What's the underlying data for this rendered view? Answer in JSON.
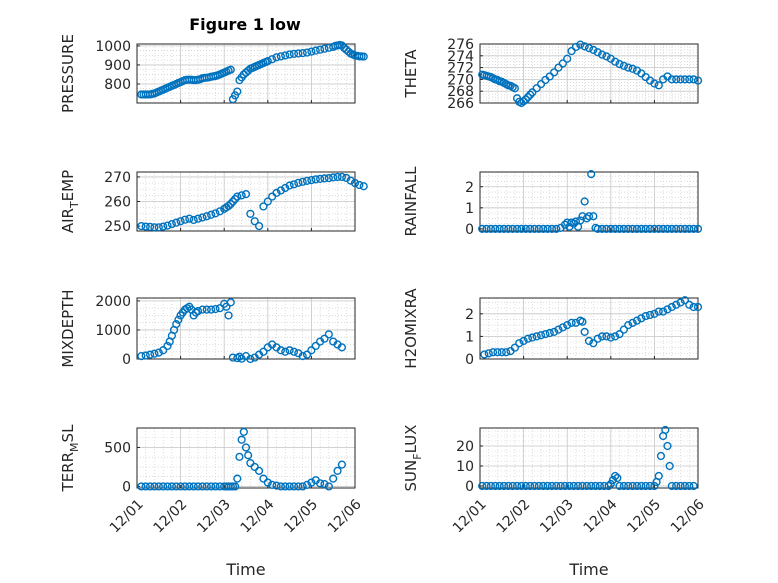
{
  "figure_title": "Figure 1 low",
  "x_tick_labels": [
    "12/01",
    "12/02",
    "12/03",
    "12/04",
    "12/05",
    "12/06"
  ],
  "marker_color": "#0072BD",
  "grid_color": "#c8c8c8",
  "axis_color": "#262626",
  "chart_data": [
    {
      "type": "scatter",
      "name": "pressure",
      "ylabel": "PRESSURE",
      "xlabel": "",
      "title": "Figure 1 low",
      "xlim": [
        0,
        5
      ],
      "ylim": [
        700,
        1010
      ],
      "yticks": [
        800,
        900,
        1000
      ],
      "x": [
        0.1,
        0.15,
        0.2,
        0.25,
        0.3,
        0.35,
        0.4,
        0.45,
        0.5,
        0.55,
        0.6,
        0.65,
        0.7,
        0.75,
        0.8,
        0.85,
        0.9,
        0.95,
        1.0,
        1.05,
        1.1,
        1.15,
        1.2,
        1.25,
        1.3,
        1.35,
        1.4,
        1.45,
        1.5,
        1.55,
        1.6,
        1.65,
        1.7,
        1.75,
        1.8,
        1.85,
        1.9,
        1.95,
        2.0,
        2.05,
        2.1,
        2.15,
        2.2,
        2.25,
        2.3,
        2.35,
        2.4,
        2.45,
        2.5,
        2.55,
        2.6,
        2.65,
        2.7,
        2.75,
        2.8,
        2.85,
        2.9,
        2.95,
        3.0,
        3.1,
        3.2,
        3.3,
        3.4,
        3.5,
        3.6,
        3.7,
        3.8,
        3.9,
        4.0,
        4.1,
        4.2,
        4.3,
        4.4,
        4.5,
        4.55,
        4.6,
        4.65,
        4.7,
        4.75,
        4.8,
        4.85,
        4.9,
        4.95,
        5.0,
        5.05,
        5.1,
        5.15,
        5.2
      ],
      "y": [
        745,
        745,
        745,
        745,
        745,
        748,
        750,
        755,
        760,
        765,
        770,
        775,
        780,
        785,
        790,
        795,
        800,
        805,
        810,
        815,
        820,
        822,
        822,
        822,
        820,
        820,
        822,
        825,
        830,
        832,
        833,
        835,
        838,
        840,
        842,
        845,
        850,
        855,
        860,
        865,
        870,
        875,
        720,
        740,
        760,
        820,
        835,
        850,
        860,
        870,
        880,
        885,
        890,
        895,
        900,
        905,
        910,
        915,
        920,
        930,
        940,
        945,
        950,
        955,
        958,
        960,
        962,
        965,
        970,
        975,
        980,
        985,
        990,
        995,
        1000,
        1002,
        1005,
        1002,
        990,
        980,
        970,
        960,
        955,
        950,
        948,
        945,
        945,
        944
      ]
    },
    {
      "type": "scatter",
      "name": "theta",
      "ylabel": "THETA",
      "xlabel": "",
      "xlim": [
        0,
        5
      ],
      "ylim": [
        266,
        276
      ],
      "yticks": [
        266,
        268,
        270,
        272,
        274,
        276
      ],
      "x": [
        0.05,
        0.1,
        0.15,
        0.2,
        0.25,
        0.3,
        0.35,
        0.4,
        0.45,
        0.5,
        0.55,
        0.6,
        0.65,
        0.7,
        0.75,
        0.8,
        0.85,
        0.9,
        0.95,
        1.0,
        1.05,
        1.1,
        1.15,
        1.2,
        1.3,
        1.4,
        1.5,
        1.6,
        1.7,
        1.8,
        1.9,
        2.0,
        2.1,
        2.2,
        2.3,
        2.4,
        2.5,
        2.6,
        2.7,
        2.8,
        2.9,
        3.0,
        3.1,
        3.2,
        3.3,
        3.4,
        3.5,
        3.6,
        3.7,
        3.8,
        3.9,
        4.0,
        4.1,
        4.2,
        4.3,
        4.4,
        4.5,
        4.6,
        4.7,
        4.8,
        4.9,
        5.0
      ],
      "y": [
        270.8,
        270.7,
        270.6,
        270.5,
        270.4,
        270.2,
        270.0,
        269.9,
        269.7,
        269.6,
        269.4,
        269.2,
        269.0,
        268.9,
        268.7,
        268.5,
        266.8,
        266.2,
        266.0,
        266.3,
        266.6,
        267.0,
        267.4,
        267.8,
        268.5,
        269.2,
        269.9,
        270.5,
        271.2,
        272.0,
        272.7,
        273.5,
        274.8,
        275.5,
        275.9,
        275.6,
        275.3,
        275.0,
        274.6,
        274.2,
        273.9,
        273.5,
        273.0,
        272.6,
        272.3,
        272.0,
        271.8,
        271.5,
        271.0,
        270.4,
        269.8,
        269.3,
        269.0,
        270.0,
        270.5,
        270.0,
        270.0,
        270.0,
        270.0,
        270.0,
        270.0,
        269.8
      ]
    },
    {
      "type": "scatter",
      "name": "air_temp",
      "ylabel": "AIR_TEMP",
      "xlabel": "",
      "xlim": [
        0,
        5
      ],
      "ylim": [
        248,
        272
      ],
      "yticks": [
        250,
        260,
        270
      ],
      "x": [
        0.1,
        0.2,
        0.3,
        0.4,
        0.5,
        0.6,
        0.7,
        0.8,
        0.9,
        1.0,
        1.1,
        1.2,
        1.3,
        1.4,
        1.5,
        1.6,
        1.7,
        1.8,
        1.9,
        2.0,
        2.05,
        2.1,
        2.15,
        2.2,
        2.25,
        2.3,
        2.4,
        2.5,
        2.6,
        2.7,
        2.8,
        2.9,
        3.0,
        3.1,
        3.2,
        3.3,
        3.4,
        3.5,
        3.6,
        3.7,
        3.8,
        3.9,
        4.0,
        4.1,
        4.2,
        4.3,
        4.4,
        4.5,
        4.6,
        4.7,
        4.8,
        4.9,
        5.0,
        5.1,
        5.2
      ],
      "y": [
        250,
        249.8,
        249.7,
        249.5,
        249.5,
        249.8,
        250.2,
        250.8,
        251.4,
        252.0,
        252.6,
        253.0,
        252.5,
        253.0,
        253.5,
        254.0,
        254.6,
        255.2,
        256.0,
        257.0,
        257.6,
        258.2,
        259.0,
        260.0,
        261.0,
        262.0,
        262.5,
        263.0,
        255,
        252,
        250,
        258,
        260.0,
        262.0,
        263.5,
        264.5,
        265.5,
        266.5,
        267.0,
        267.6,
        268.0,
        268.4,
        268.7,
        269.0,
        269.2,
        269.4,
        269.5,
        269.8,
        270.0,
        270.0,
        269.6,
        268.5,
        267.5,
        266.7,
        266.2
      ]
    },
    {
      "type": "scatter",
      "name": "rainfall",
      "ylabel": "RAINFALL",
      "xlabel": "",
      "xlim": [
        0,
        5
      ],
      "ylim": [
        -0.1,
        2.7
      ],
      "yticks": [
        0,
        1,
        2
      ],
      "x": [
        0.05,
        0.15,
        0.25,
        0.35,
        0.45,
        0.55,
        0.65,
        0.75,
        0.85,
        0.95,
        1.05,
        1.15,
        1.25,
        1.35,
        1.45,
        1.55,
        1.65,
        1.75,
        1.85,
        1.95,
        2.0,
        2.05,
        2.1,
        2.15,
        2.2,
        2.25,
        2.3,
        2.35,
        2.4,
        2.45,
        2.5,
        2.55,
        2.6,
        2.65,
        2.7,
        2.8,
        2.9,
        3.0,
        3.1,
        3.2,
        3.3,
        3.4,
        3.5,
        3.6,
        3.7,
        3.8,
        3.9,
        4.0,
        4.1,
        4.2,
        4.3,
        4.4,
        4.5,
        4.6,
        4.7,
        4.8,
        4.9,
        5.0
      ],
      "y": [
        0,
        0,
        0,
        0,
        0,
        0,
        0,
        0,
        0,
        0,
        0,
        0,
        0,
        0,
        0,
        0,
        0,
        0,
        0.05,
        0.2,
        0.3,
        0.1,
        0.3,
        0.25,
        0.35,
        0.1,
        0.4,
        0.6,
        1.3,
        0.5,
        0.6,
        2.6,
        0.6,
        0.05,
        0,
        0,
        0,
        0,
        0,
        0,
        0,
        0,
        0,
        0,
        0,
        0,
        0,
        0,
        0,
        0,
        0,
        0,
        0,
        0,
        0,
        0,
        0,
        0
      ]
    },
    {
      "type": "scatter",
      "name": "mixdepth",
      "ylabel": "MIXDEPTH",
      "xlabel": "",
      "xlim": [
        0,
        5
      ],
      "ylim": [
        0,
        2100
      ],
      "yticks": [
        0,
        1000,
        2000
      ],
      "x": [
        0.1,
        0.2,
        0.3,
        0.4,
        0.5,
        0.6,
        0.7,
        0.75,
        0.8,
        0.85,
        0.9,
        0.95,
        1.0,
        1.05,
        1.1,
        1.15,
        1.2,
        1.25,
        1.3,
        1.35,
        1.4,
        1.5,
        1.6,
        1.7,
        1.8,
        1.9,
        2.0,
        2.05,
        2.1,
        2.15,
        2.2,
        2.3,
        2.35,
        2.4,
        2.5,
        2.6,
        2.7,
        2.8,
        2.9,
        3.0,
        3.1,
        3.2,
        3.3,
        3.4,
        3.5,
        3.6,
        3.7,
        3.8,
        3.9,
        4.0,
        4.1,
        4.2,
        4.3,
        4.4,
        4.5,
        4.6,
        4.7
      ],
      "y": [
        100,
        120,
        150,
        180,
        220,
        300,
        450,
        600,
        800,
        1000,
        1200,
        1350,
        1500,
        1600,
        1700,
        1750,
        1800,
        1700,
        1500,
        1600,
        1650,
        1700,
        1700,
        1700,
        1720,
        1750,
        1900,
        1800,
        1500,
        1950,
        50,
        30,
        80,
        10,
        100,
        0,
        50,
        150,
        250,
        400,
        500,
        400,
        300,
        250,
        300,
        250,
        200,
        100,
        150,
        300,
        450,
        600,
        700,
        850,
        600,
        500,
        400
      ]
    },
    {
      "type": "scatter",
      "name": "h2omixra",
      "ylabel": "H2OMIXRA",
      "xlabel": "",
      "xlim": [
        0,
        5
      ],
      "ylim": [
        0,
        2.7
      ],
      "yticks": [
        0,
        1,
        2
      ],
      "x": [
        0.1,
        0.2,
        0.3,
        0.4,
        0.5,
        0.6,
        0.7,
        0.8,
        0.9,
        1.0,
        1.1,
        1.2,
        1.3,
        1.4,
        1.5,
        1.6,
        1.7,
        1.8,
        1.9,
        2.0,
        2.1,
        2.2,
        2.3,
        2.35,
        2.4,
        2.5,
        2.6,
        2.7,
        2.8,
        2.9,
        3.0,
        3.1,
        3.2,
        3.3,
        3.4,
        3.5,
        3.6,
        3.7,
        3.8,
        3.9,
        4.0,
        4.1,
        4.2,
        4.3,
        4.4,
        4.5,
        4.6,
        4.7,
        4.8,
        4.9,
        5.0
      ],
      "y": [
        0.2,
        0.25,
        0.3,
        0.3,
        0.3,
        0.3,
        0.35,
        0.5,
        0.7,
        0.8,
        0.9,
        0.95,
        1.0,
        1.05,
        1.1,
        1.15,
        1.2,
        1.3,
        1.4,
        1.5,
        1.6,
        1.6,
        1.7,
        1.65,
        1.2,
        0.8,
        0.7,
        0.9,
        1.0,
        1.0,
        0.95,
        1.0,
        1.1,
        1.3,
        1.5,
        1.6,
        1.7,
        1.8,
        1.9,
        1.95,
        2.0,
        2.1,
        2.1,
        2.2,
        2.3,
        2.4,
        2.5,
        2.6,
        2.4,
        2.3,
        2.3
      ]
    },
    {
      "type": "scatter",
      "name": "terr_msl",
      "ylabel": "TERR_MSL",
      "xlabel": "Time",
      "xlim": [
        0,
        5
      ],
      "ylim": [
        -20,
        750
      ],
      "yticks": [
        0,
        500
      ],
      "x": [
        0.1,
        0.2,
        0.3,
        0.4,
        0.5,
        0.6,
        0.7,
        0.8,
        0.9,
        1.0,
        1.1,
        1.2,
        1.3,
        1.4,
        1.5,
        1.6,
        1.7,
        1.8,
        1.9,
        2.0,
        2.05,
        2.1,
        2.15,
        2.2,
        2.25,
        2.3,
        2.35,
        2.4,
        2.45,
        2.5,
        2.55,
        2.6,
        2.7,
        2.8,
        2.9,
        3.0,
        3.1,
        3.2,
        3.3,
        3.4,
        3.5,
        3.6,
        3.7,
        3.8,
        3.9,
        4.0,
        4.1,
        4.2,
        4.3,
        4.4,
        4.5,
        4.6,
        4.7
      ],
      "y": [
        0,
        0,
        0,
        0,
        0,
        0,
        0,
        0,
        0,
        0,
        0,
        0,
        0,
        0,
        0,
        0,
        0,
        0,
        0,
        0,
        0,
        0,
        0,
        0,
        0,
        100,
        380,
        600,
        700,
        500,
        400,
        300,
        250,
        200,
        100,
        50,
        20,
        10,
        0,
        0,
        0,
        0,
        0,
        0,
        20,
        50,
        80,
        40,
        30,
        0,
        100,
        200,
        280
      ]
    },
    {
      "type": "scatter",
      "name": "sun_flux",
      "ylabel": "SUN_FLUX",
      "xlabel": "Time",
      "xlim": [
        0,
        5
      ],
      "ylim": [
        -1,
        29
      ],
      "yticks": [
        0,
        10,
        20
      ],
      "x": [
        0.05,
        0.15,
        0.25,
        0.35,
        0.45,
        0.55,
        0.65,
        0.75,
        0.85,
        0.95,
        1.05,
        1.15,
        1.25,
        1.35,
        1.45,
        1.55,
        1.65,
        1.75,
        1.85,
        1.95,
        2.05,
        2.15,
        2.25,
        2.35,
        2.45,
        2.55,
        2.65,
        2.75,
        2.85,
        2.95,
        3.0,
        3.05,
        3.1,
        3.15,
        3.2,
        3.3,
        3.4,
        3.5,
        3.6,
        3.7,
        3.8,
        3.9,
        4.0,
        4.05,
        4.1,
        4.15,
        4.2,
        4.25,
        4.3,
        4.35,
        4.4,
        4.5,
        4.6,
        4.7,
        4.8,
        4.9
      ],
      "y": [
        0,
        0,
        0,
        0,
        0,
        0,
        0,
        0,
        0,
        0,
        0,
        0,
        0,
        0,
        0,
        0,
        0,
        0,
        0,
        0,
        0,
        0,
        0,
        0,
        0,
        0,
        0,
        0,
        0,
        0,
        1,
        3,
        5,
        4,
        0,
        0,
        0,
        0,
        0,
        0,
        0,
        0,
        0,
        2,
        5,
        15,
        25,
        28,
        20,
        10,
        0,
        0,
        0,
        0,
        0,
        0
      ]
    }
  ]
}
